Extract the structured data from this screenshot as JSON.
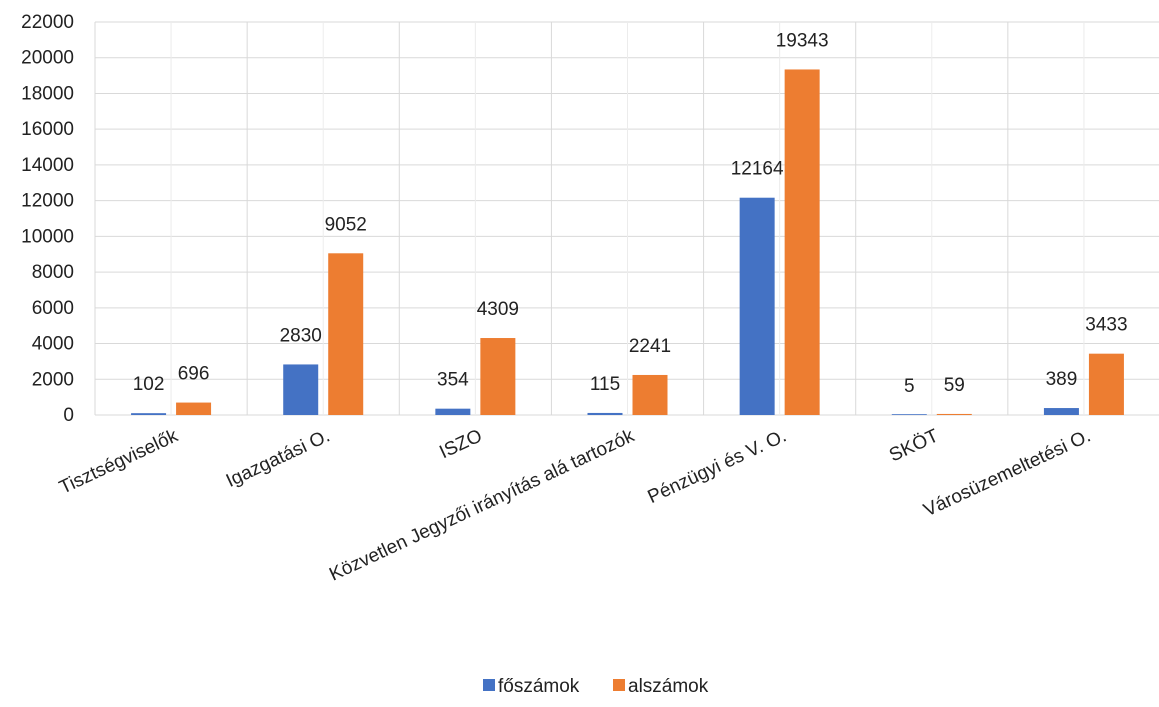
{
  "chart_data": {
    "type": "bar",
    "categories": [
      "Tisztségviselők",
      "Igazgatási O.",
      "ISZO",
      "Közvetlen Jegyzői irányítás alá tartozók",
      "Pénzügyi és V. O.",
      "SKÖT",
      "Városüzemeltetési O."
    ],
    "series": [
      {
        "name": "főszámok",
        "values": [
          102,
          2830,
          354,
          115,
          12164,
          5,
          389
        ],
        "color": "#4472C4"
      },
      {
        "name": "alszámok",
        "values": [
          696,
          9052,
          4309,
          2241,
          19343,
          59,
          3433
        ],
        "color": "#ED7D31"
      }
    ],
    "ylim": [
      0,
      22000
    ],
    "yticks": [
      0,
      2000,
      4000,
      6000,
      8000,
      10000,
      12000,
      14000,
      16000,
      18000,
      20000,
      22000
    ],
    "grid": true,
    "legend_position": "bottom",
    "data_labels": true
  }
}
